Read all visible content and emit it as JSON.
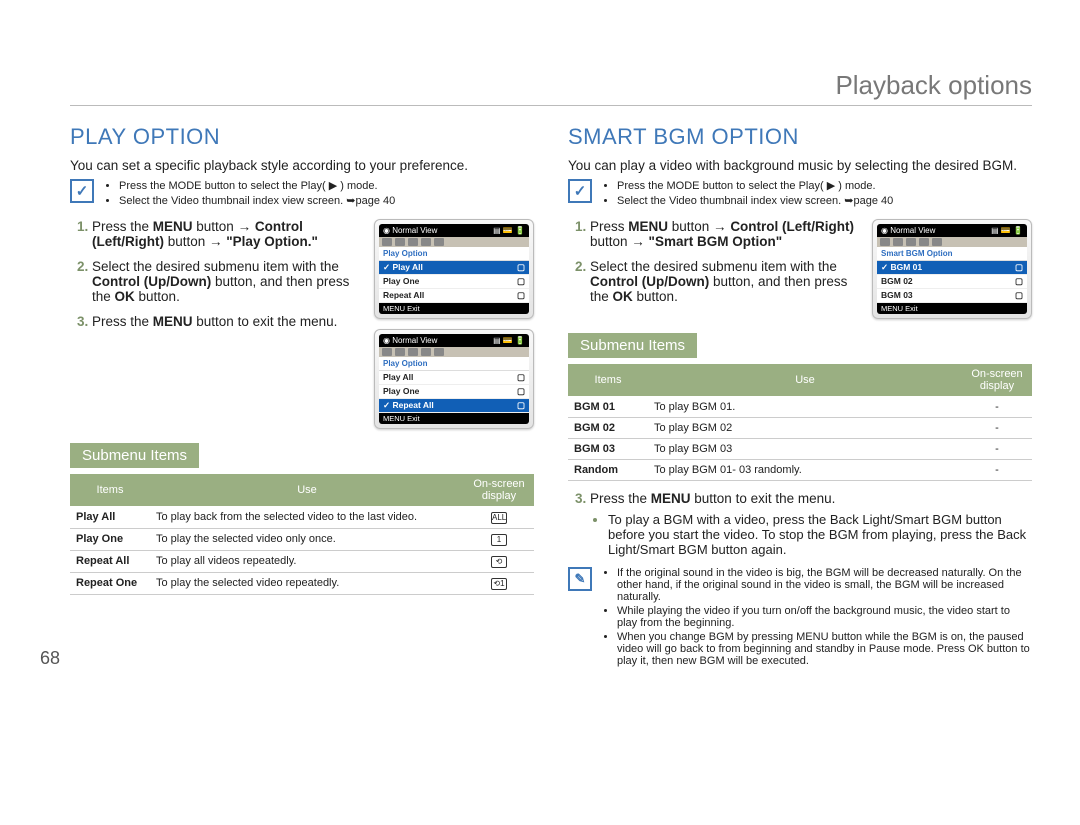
{
  "page_header": "Playback options",
  "page_number": "68",
  "left": {
    "title": "PLAY OPTION",
    "intro": "You can set a specific playback style according to your preference.",
    "note_icon": "✓",
    "notes": [
      "Press the MODE button to select the Play( ▶ ) mode.",
      "Select the Video thumbnail index view screen. ➥page 40"
    ],
    "steps": [
      {
        "pre": "Press the ",
        "b1": "MENU",
        "mid": " button → ",
        "b2": "Control (Left/Right)",
        "mid2": " button → ",
        "b3": "\"Play Option.\""
      },
      {
        "pre": "Select the desired submenu item with the ",
        "b1": "Control (Up/Down)",
        "mid": " button, and then press the ",
        "b2": "OK",
        "mid2": " button.",
        "b3": ""
      },
      {
        "pre": "Press the ",
        "b1": "MENU",
        "mid": " button to exit the menu.",
        "b2": "",
        "mid2": "",
        "b3": ""
      }
    ],
    "screens": [
      {
        "title": "Normal View",
        "menu": "Play Option",
        "rows": [
          "Play All",
          "Play One",
          "Repeat All"
        ],
        "sel": 0,
        "footer": "MENU Exit"
      },
      {
        "title": "Normal View",
        "menu": "Play Option",
        "rows": [
          "Play All",
          "Play One",
          "Repeat All"
        ],
        "sel": 2,
        "footer": "MENU Exit"
      }
    ],
    "submenu_label": "Submenu Items",
    "table": {
      "headers": [
        "Items",
        "Use",
        "On-screen display"
      ],
      "rows": [
        {
          "item": "Play All",
          "use": "To play back from the selected video to the last video.",
          "osd": "ALL"
        },
        {
          "item": "Play One",
          "use": "To play the selected video only once.",
          "osd": "1"
        },
        {
          "item": "Repeat All",
          "use": "To play all videos repeatedly.",
          "osd": "⟲"
        },
        {
          "item": "Repeat One",
          "use": "To play the selected video repeatedly.",
          "osd": "⟲1"
        }
      ]
    }
  },
  "right": {
    "title": "SMART BGM OPTION",
    "intro": "You can play a video with background music by selecting the desired BGM.",
    "note_icon": "✓",
    "notes": [
      "Press the MODE button to select the Play( ▶ ) mode.",
      "Select the Video thumbnail index view screen. ➥page 40"
    ],
    "steps": [
      {
        "pre": "Press ",
        "b1": "MENU",
        "mid": " button → ",
        "b2": "Control (Left/Right)",
        "mid2": " button → ",
        "b3": "\"Smart BGM Option\""
      },
      {
        "pre": "Select the desired submenu item with the ",
        "b1": "Control (Up/Down)",
        "mid": " button, and then press the ",
        "b2": "OK",
        "mid2": " button.",
        "b3": ""
      }
    ],
    "screens": [
      {
        "title": "Normal View",
        "menu": "Smart BGM Option",
        "rows": [
          "BGM 01",
          "BGM 02",
          "BGM 03"
        ],
        "sel": 0,
        "footer": "MENU Exit"
      }
    ],
    "submenu_label": "Submenu Items",
    "table": {
      "headers": [
        "Items",
        "Use",
        "On-screen display"
      ],
      "rows": [
        {
          "item": "BGM 01",
          "use": "To play BGM 01.",
          "osd": "-"
        },
        {
          "item": "BGM 02",
          "use": "To play BGM 02",
          "osd": "-"
        },
        {
          "item": "BGM 03",
          "use": "To play BGM 03",
          "osd": "-"
        },
        {
          "item": "Random",
          "use": "To play BGM 01- 03 randomly.",
          "osd": "-"
        }
      ]
    },
    "step3_pre": "Press the ",
    "step3_b": "MENU",
    "step3_post": " button to exit the menu.",
    "step3_bullet": "To play a BGM with a video, press the Back Light/Smart BGM button before you start the video. To stop the BGM from playing, press the Back Light/Smart BGM button again.",
    "note2_icon": "✎",
    "notes2": [
      "If the original sound in the video is big, the BGM will be decreased naturally. On the other hand, if the original sound in the video is small,  the BGM will be increased naturally.",
      "While playing the video if you turn on/off the background music, the video start to play from the beginning.",
      "When you change BGM by pressing MENU button while the BGM is on, the paused video will go back to from beginning and standby in Pause mode. Press OK button to play it, then new BGM will be executed."
    ]
  }
}
